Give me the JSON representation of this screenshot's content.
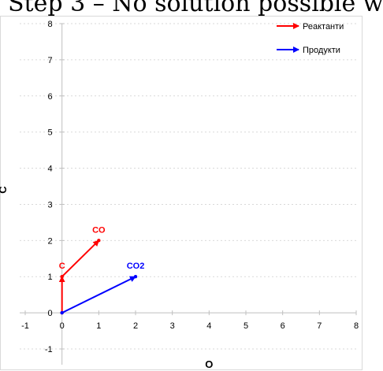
{
  "page": {
    "heading": "Step 3 – No solution possible w"
  },
  "colors": {
    "reactants": "#ff0000",
    "products": "#0000ff",
    "grid": "#d9d9d9",
    "axis": "#bfbfbf"
  },
  "chart_data": {
    "type": "scatter",
    "title": "",
    "xlabel": "O",
    "ylabel": "C",
    "xlim": [
      -1,
      8
    ],
    "ylim": [
      -1,
      8
    ],
    "xticks": [
      -1,
      0,
      1,
      2,
      3,
      4,
      5,
      6,
      7,
      8
    ],
    "yticks": [
      -1,
      0,
      1,
      2,
      3,
      4,
      5,
      6,
      7,
      8
    ],
    "grid": true,
    "legend_position": "top-right",
    "series": [
      {
        "name": "Реактанти",
        "color": "#ff0000",
        "points": [
          {
            "x": 0,
            "y": 0,
            "label": ""
          },
          {
            "x": 0,
            "y": 1,
            "label": "C"
          },
          {
            "x": 1,
            "y": 2,
            "label": "CO"
          }
        ]
      },
      {
        "name": "Продукти",
        "color": "#0000ff",
        "points": [
          {
            "x": 0,
            "y": 0,
            "label": ""
          },
          {
            "x": 2,
            "y": 1,
            "label": "CO2"
          }
        ]
      }
    ]
  }
}
